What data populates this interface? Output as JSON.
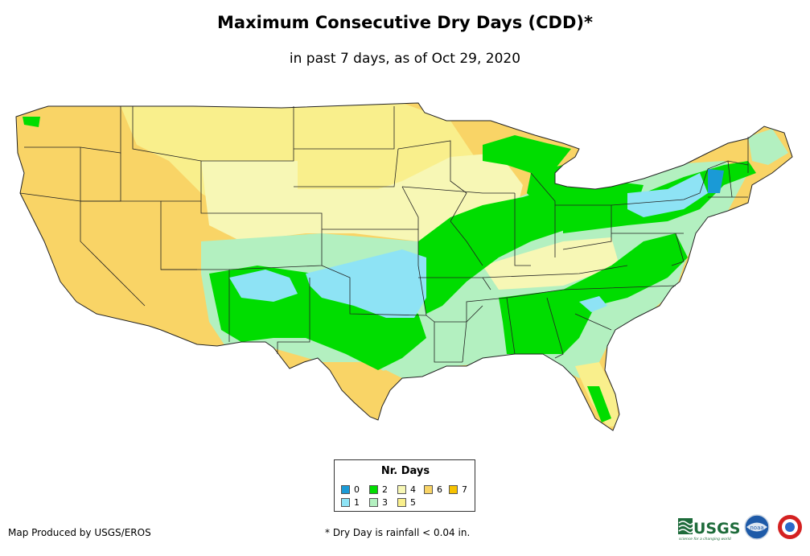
{
  "title": "Maximum Consecutive Dry Days (CDD)*",
  "subtitle": "in past 7 days, as of Oct 29, 2020",
  "legend": {
    "title": "Nr. Days",
    "items": [
      {
        "label": "0",
        "color": "#1a9ad6"
      },
      {
        "label": "1",
        "color": "#8ee3f5"
      },
      {
        "label": "2",
        "color": "#00dd00"
      },
      {
        "label": "3",
        "color": "#b3f0c0"
      },
      {
        "label": "4",
        "color": "#f7f7b5"
      },
      {
        "label": "5",
        "color": "#f9ef8c"
      },
      {
        "label": "6",
        "color": "#f9d466"
      },
      {
        "label": "7",
        "color": "#f6c200"
      }
    ]
  },
  "footer": {
    "producer": "Map Produced by USGS/EROS",
    "footnote": "* Dry Day is rainfall < 0.04 in."
  },
  "logos": {
    "usgs": "USGS",
    "usgs_tagline": "science for a changing world",
    "noaa": "noaa"
  }
}
